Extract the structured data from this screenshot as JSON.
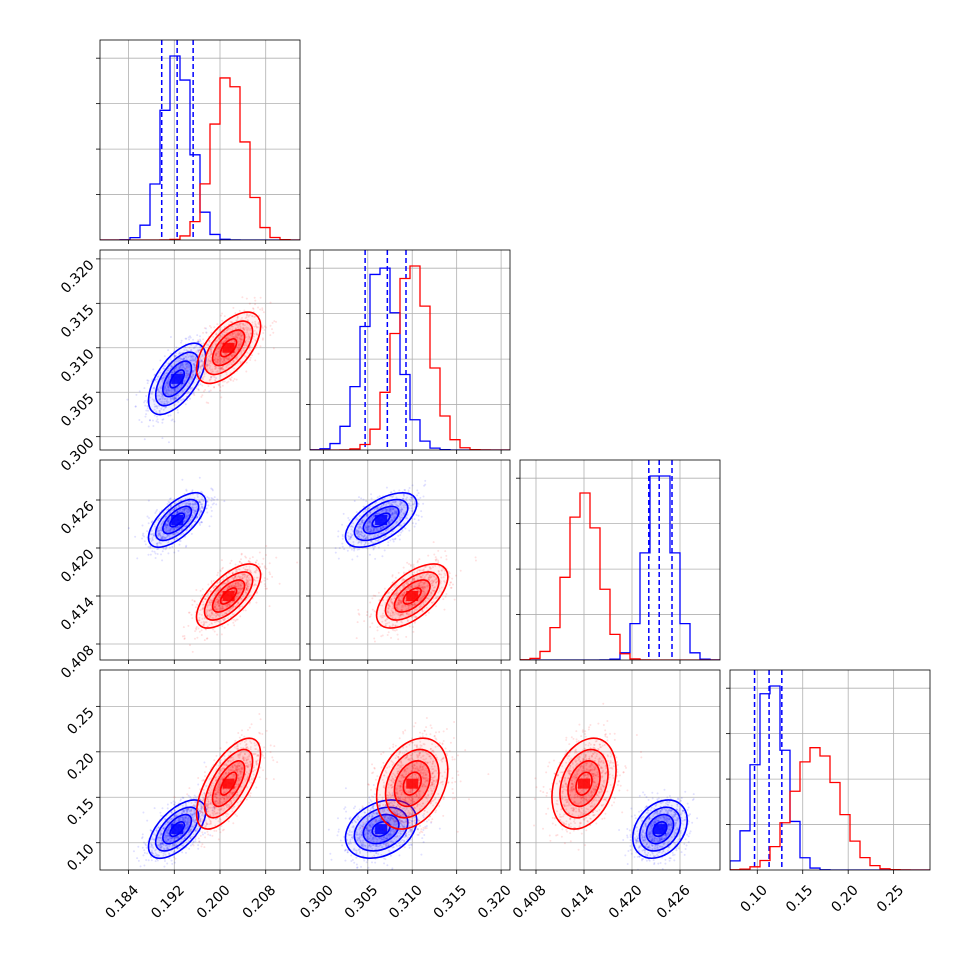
{
  "chart_data": {
    "type": "scatter",
    "plot_kind": "corner plot (pairwise 2D density contours with marginal 1D histograms)",
    "parameters": [
      {
        "ticks": [
          "0.184",
          "0.192",
          "0.200",
          "0.208"
        ],
        "range": [
          0.179,
          0.214
        ]
      },
      {
        "ticks": [
          "0.300",
          "0.305",
          "0.310",
          "0.315",
          "0.320"
        ],
        "range": [
          0.2985,
          0.321
        ]
      },
      {
        "ticks": [
          "0.408",
          "0.414",
          "0.420",
          "0.426"
        ],
        "range": [
          0.406,
          0.431
        ]
      },
      {
        "ticks": [
          "0.10",
          "0.15",
          "0.20",
          "0.25"
        ],
        "range": [
          0.07,
          0.29
        ]
      }
    ],
    "series": [
      {
        "color": "#0000ff",
        "mean": [
          0.1925,
          0.3065,
          0.4235,
          0.115
        ],
        "sigma": [
          0.0025,
          0.002,
          0.0017,
          0.016
        ],
        "corr": {
          "0-1": 0.6,
          "0-2": 0.65,
          "0-3": 0.6,
          "1-2": 0.6,
          "1-3": 0.3,
          "2-3": 0.3
        },
        "quantile_lines": [
          [
            0.1898,
            0.1925,
            0.1953
          ],
          [
            0.3047,
            0.3072,
            0.3093
          ],
          [
            0.4221,
            0.4234,
            0.425
          ],
          [
            0.097,
            0.113,
            0.127
          ]
        ]
      },
      {
        "color": "#ff0000",
        "mean": [
          0.2015,
          0.31,
          0.414,
          0.165
        ],
        "sigma": [
          0.0028,
          0.002,
          0.002,
          0.025
        ],
        "corr": {
          "0-1": 0.6,
          "0-2": 0.65,
          "0-3": 0.65,
          "1-2": 0.6,
          "1-3": 0.3,
          "2-3": 0.3
        }
      }
    ],
    "grid": true,
    "contour_levels_sigma": [
      0.5,
      1.0,
      1.5,
      2.0
    ]
  }
}
